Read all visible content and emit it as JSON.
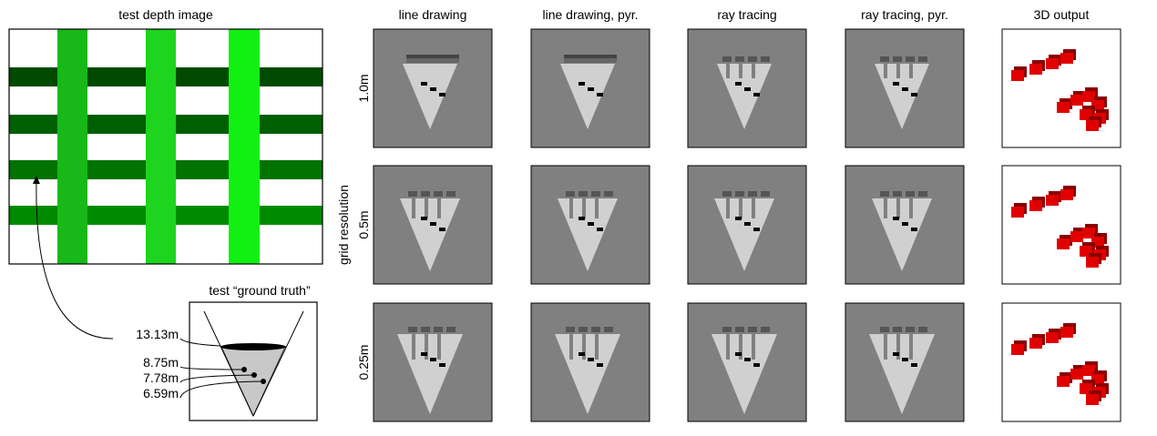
{
  "depth_image": {
    "title": "test depth image"
  },
  "columns": [
    "line drawing",
    "line drawing, pyr.",
    "ray tracing",
    "ray tracing, pyr.",
    "3D output"
  ],
  "row_axis_label": "grid resolution",
  "rows": [
    "1.0m",
    "0.5m",
    "0.25m"
  ],
  "ground_truth": {
    "title": "test “ground truth”",
    "depths": [
      "13.13m",
      "8.75m",
      "7.78m",
      "6.59m"
    ]
  }
}
